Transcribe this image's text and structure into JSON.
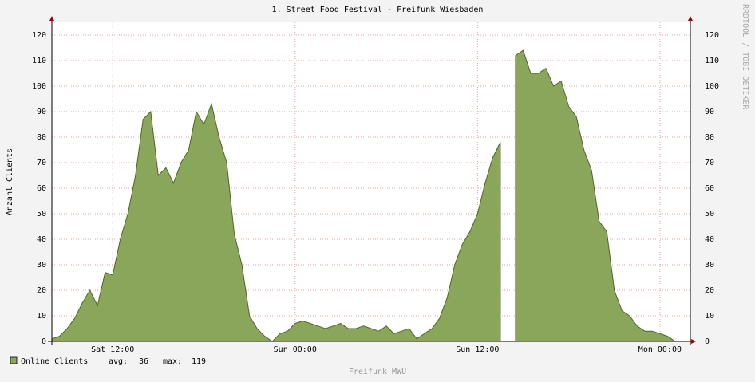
{
  "chart_data": {
    "type": "area",
    "title": "1. Street Food Festival - Freifunk Wiesbaden",
    "y_label": "Anzahl Clients",
    "footer": "Freifunk MWU",
    "watermark": "RRDTOOL / TOBI OETIKER",
    "x": [
      8,
      8.5,
      9,
      9.5,
      10,
      10.5,
      11,
      11.5,
      12,
      12.5,
      13,
      13.5,
      14,
      14.5,
      15,
      15.5,
      16,
      16.5,
      17,
      17.5,
      18,
      18.5,
      19,
      19.5,
      20,
      20.5,
      21,
      21.5,
      22,
      22.5,
      23,
      23.5,
      24,
      24.5,
      25,
      25.5,
      26,
      26.5,
      27,
      27.5,
      28,
      28.5,
      29,
      29.5,
      30,
      30.5,
      31,
      31.5,
      32,
      32.5,
      33,
      33.5,
      34,
      34.5,
      35,
      35.5,
      36,
      36.5,
      37,
      37.5,
      38,
      38.5,
      39,
      39.5,
      40,
      40.5,
      41,
      41.5,
      42,
      42.5,
      43,
      43.5,
      44,
      44.5,
      45,
      45.5,
      46,
      46.5,
      47,
      47.5,
      48,
      48.5,
      49,
      49.5,
      50
    ],
    "series": [
      {
        "name": "Online Clients",
        "color": "#8aa65a",
        "values": [
          1,
          2,
          5,
          9,
          15,
          20,
          14,
          27,
          26,
          40,
          50,
          65,
          87,
          90,
          65,
          68,
          62,
          70,
          75,
          90,
          85,
          93,
          80,
          70,
          42,
          30,
          10,
          5,
          2,
          0,
          3,
          4,
          7,
          8,
          7,
          6,
          5,
          6,
          7,
          5,
          5,
          6,
          5,
          4,
          6,
          3,
          4,
          5,
          1,
          3,
          5,
          9,
          17,
          30,
          38,
          43,
          50,
          62,
          72,
          78,
          null,
          112,
          114,
          105,
          105,
          107,
          100,
          102,
          92,
          88,
          75,
          67,
          47,
          43,
          20,
          12,
          10,
          6,
          4,
          4,
          3,
          2,
          0,
          null,
          null
        ]
      }
    ],
    "stats": [
      {
        "label": "avg:",
        "value": 36
      },
      {
        "label": "max:",
        "value": 119
      }
    ],
    "xlim": [
      8,
      50
    ],
    "xticks": [
      {
        "value": 12,
        "label": "Sat 12:00"
      },
      {
        "value": 24,
        "label": "Sun 00:00"
      },
      {
        "value": 36,
        "label": "Sun 12:00"
      },
      {
        "value": 48,
        "label": "Mon 00:00"
      }
    ],
    "ylim": [
      0,
      125
    ],
    "yticks": [
      0,
      10,
      20,
      30,
      40,
      50,
      60,
      70,
      80,
      90,
      100,
      110,
      120
    ],
    "grid": true
  }
}
